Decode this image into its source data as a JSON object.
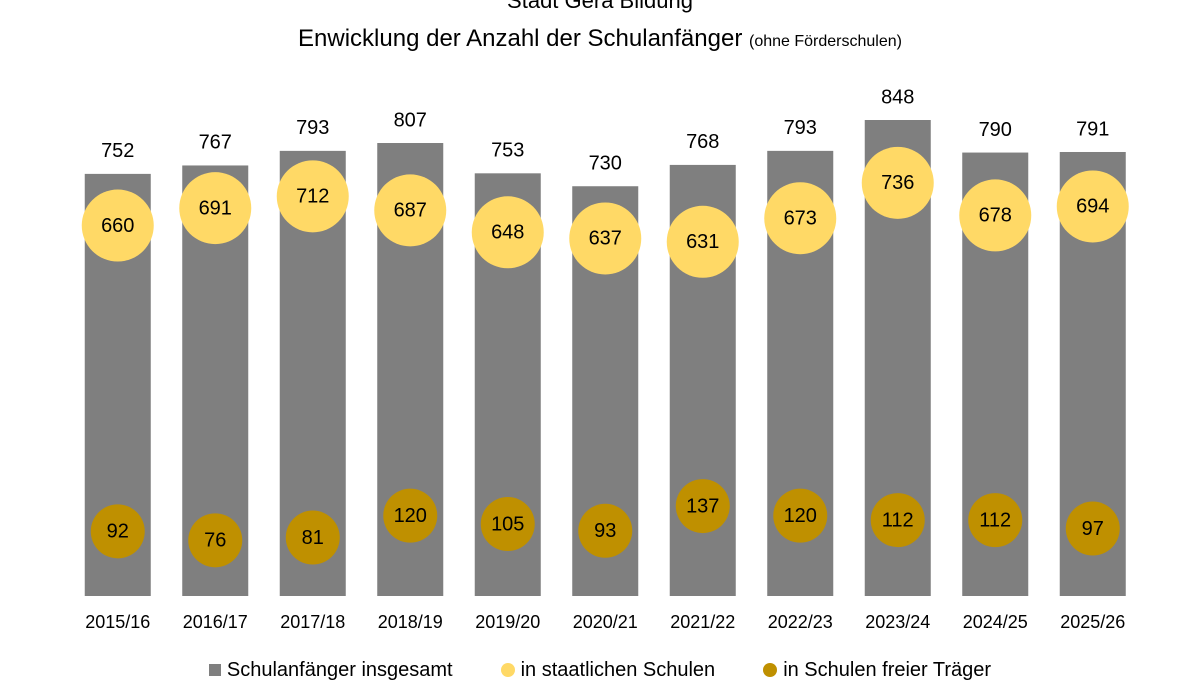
{
  "chart_data": {
    "type": "bar",
    "title": "Stadt Gera Bildung",
    "subtitle": "Enwicklung der Anzahl der Schulanfänger",
    "subtitle_note": "(ohne Förderschulen)",
    "categories": [
      "2015/16",
      "2016/17",
      "2017/18",
      "2018/19",
      "2019/20",
      "2020/21",
      "2021/22",
      "2022/23",
      "2023/24",
      "2024/25",
      "2025/26"
    ],
    "series": [
      {
        "name": "Schulanfänger insgesamt",
        "kind": "bar",
        "color": "#7f7f7f",
        "values": [
          752,
          767,
          793,
          807,
          753,
          730,
          768,
          793,
          848,
          790,
          791
        ]
      },
      {
        "name": "in staatlichen Schulen",
        "kind": "marker",
        "color": "#ffd966",
        "values": [
          660,
          691,
          712,
          687,
          648,
          637,
          631,
          673,
          736,
          678,
          694
        ]
      },
      {
        "name": "in Schulen freier Träger",
        "kind": "marker",
        "color": "#bf9000",
        "values": [
          92,
          76,
          81,
          120,
          105,
          93,
          137,
          120,
          112,
          112,
          97
        ]
      }
    ],
    "xlabel": "",
    "ylabel": "",
    "ylim": [
      0,
      900
    ],
    "grid": false,
    "legend": "bottom"
  }
}
